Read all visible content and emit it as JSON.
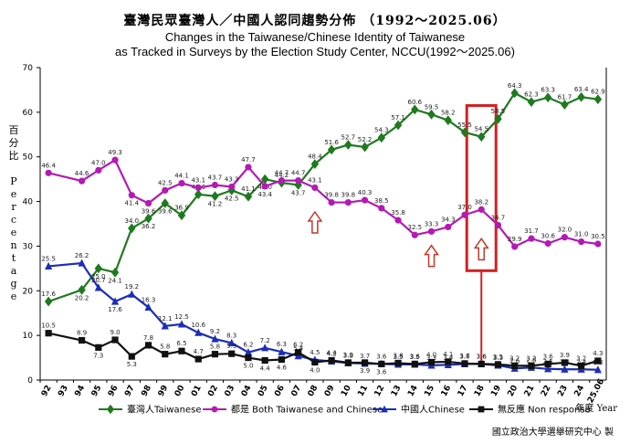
{
  "title_zh": "臺灣民眾臺灣人／中國人認同趨勢分佈 （1992～2025.06）",
  "title_en_1": "Changes in the Taiwanese/Chinese Identity of Taiwanese",
  "title_en_2": "as Tracked in Surveys by the Election Study Center, NCCU(1992～2025.06)",
  "ylabel_zh": "百分比",
  "ylabel_en": "Percentage",
  "xunit": "年度 Year",
  "credit": "國立政治大學選舉研究中心 製",
  "colors": {
    "taiwanese": "#1f7a1f",
    "both": "#b31ab3",
    "chinese": "#1c2db8",
    "nonresponse": "#111111",
    "highlight": "#d42020",
    "arrow": "#c0392b"
  },
  "chart_data": {
    "type": "line",
    "ylim": [
      0,
      70
    ],
    "yticks": [
      0,
      10,
      20,
      30,
      40,
      50,
      60,
      70
    ],
    "x": [
      "92",
      "93",
      "94",
      "95",
      "96",
      "97",
      "98",
      "99",
      "00",
      "01",
      "02",
      "03",
      "04",
      "05",
      "06",
      "07",
      "08",
      "09",
      "10",
      "11",
      "12",
      "13",
      "14",
      "15",
      "16",
      "17",
      "18",
      "19",
      "20",
      "21",
      "22",
      "23",
      "24",
      "25.06"
    ],
    "series": [
      {
        "name": "臺灣人Taiwanese",
        "key": "taiwanese",
        "marker": "diamond",
        "labels_below": [
          0,
          0,
          1,
          1,
          1,
          0,
          1,
          1,
          0,
          0,
          1,
          1,
          0,
          1,
          0,
          1,
          0,
          0,
          0,
          0,
          0,
          0,
          0,
          0,
          0,
          0,
          0,
          0,
          0,
          0,
          0,
          0,
          0,
          0
        ],
        "values": [
          17.6,
          null,
          20.2,
          25.0,
          24.1,
          34.0,
          36.2,
          39.6,
          36.9,
          41.6,
          41.2,
          42.5,
          41.1,
          45.0,
          44.2,
          43.7,
          48.4,
          51.6,
          52.7,
          52.2,
          54.3,
          57.1,
          60.6,
          59.5,
          58.2,
          55.5,
          54.5,
          58.5,
          64.3,
          62.3,
          63.3,
          61.7,
          63.4,
          62.9
        ]
      },
      {
        "name": "都是 Both Taiwanese and Chinese",
        "key": "both",
        "marker": "circle",
        "labels_below": [
          0,
          0,
          0,
          0,
          0,
          1,
          1,
          0,
          0,
          0,
          0,
          0,
          0,
          1,
          0,
          0,
          0,
          0,
          0,
          0,
          0,
          0,
          0,
          0,
          0,
          0,
          0,
          0,
          0,
          0,
          0,
          0,
          0,
          0
        ],
        "values": [
          46.4,
          null,
          44.6,
          47.0,
          49.3,
          41.4,
          39.6,
          42.5,
          44.1,
          43.1,
          43.7,
          43.3,
          47.7,
          43.4,
          44.7,
          44.7,
          43.1,
          39.8,
          39.8,
          40.3,
          38.5,
          35.8,
          32.5,
          33.3,
          34.3,
          37.0,
          38.2,
          34.7,
          29.9,
          31.7,
          30.6,
          32.0,
          31.0,
          30.5
        ]
      },
      {
        "name": "中國人Chinese",
        "key": "chinese",
        "marker": "triangle",
        "labels_below": [
          0,
          0,
          0,
          0,
          1,
          0,
          0,
          0,
          0,
          0,
          0,
          0,
          0,
          0,
          0,
          0,
          0,
          0,
          0,
          0,
          0,
          0,
          0,
          0,
          0,
          0,
          0,
          0,
          0,
          0,
          0,
          0,
          0,
          0
        ],
        "values": [
          25.5,
          null,
          26.2,
          20.7,
          17.6,
          19.2,
          16.3,
          12.1,
          12.5,
          10.6,
          9.2,
          8.3,
          6.2,
          7.2,
          6.3,
          5.4,
          4.5,
          4.2,
          3.8,
          3.7,
          3.6,
          3.5,
          3.5,
          3.3,
          3.4,
          3.6,
          3.6,
          3.3,
          2.6,
          2.8,
          2.5,
          2.4,
          2.4,
          2.3
        ]
      },
      {
        "name": "無反應 Non response",
        "key": "nonresponse",
        "marker": "square",
        "labels_below": [
          0,
          0,
          0,
          1,
          0,
          1,
          0,
          0,
          0,
          0,
          0,
          0,
          1,
          1,
          1,
          0,
          1,
          0,
          0,
          1,
          1,
          0,
          0,
          0,
          0,
          0,
          0,
          0,
          0,
          0,
          0,
          0,
          0,
          0
        ],
        "values": [
          10.5,
          null,
          8.9,
          7.3,
          9.0,
          5.3,
          7.8,
          5.8,
          6.5,
          4.7,
          5.8,
          5.9,
          5.0,
          4.4,
          4.6,
          6.2,
          4.0,
          4.4,
          3.9,
          3.9,
          3.6,
          3.8,
          3.6,
          4.0,
          4.1,
          3.7,
          3.6,
          3.5,
          3.2,
          3.2,
          3.6,
          3.9,
          3.2,
          4.3
        ]
      }
    ],
    "legend": [
      {
        "key": "taiwanese",
        "marker": "diamond",
        "label": "臺灣人Taiwanese"
      },
      {
        "key": "both",
        "marker": "circle",
        "label": "都是 Both Taiwanese and Chinese"
      },
      {
        "key": "chinese",
        "marker": "triangle",
        "label": "中國人Chinese"
      },
      {
        "key": "nonresponse",
        "marker": "square",
        "label": "無反應 Non response"
      }
    ],
    "legend_position": "bottom",
    "grid": false,
    "annotations": {
      "up_arrows_at": [
        "08",
        "15",
        "18"
      ],
      "highlight_box_around": "18"
    }
  }
}
